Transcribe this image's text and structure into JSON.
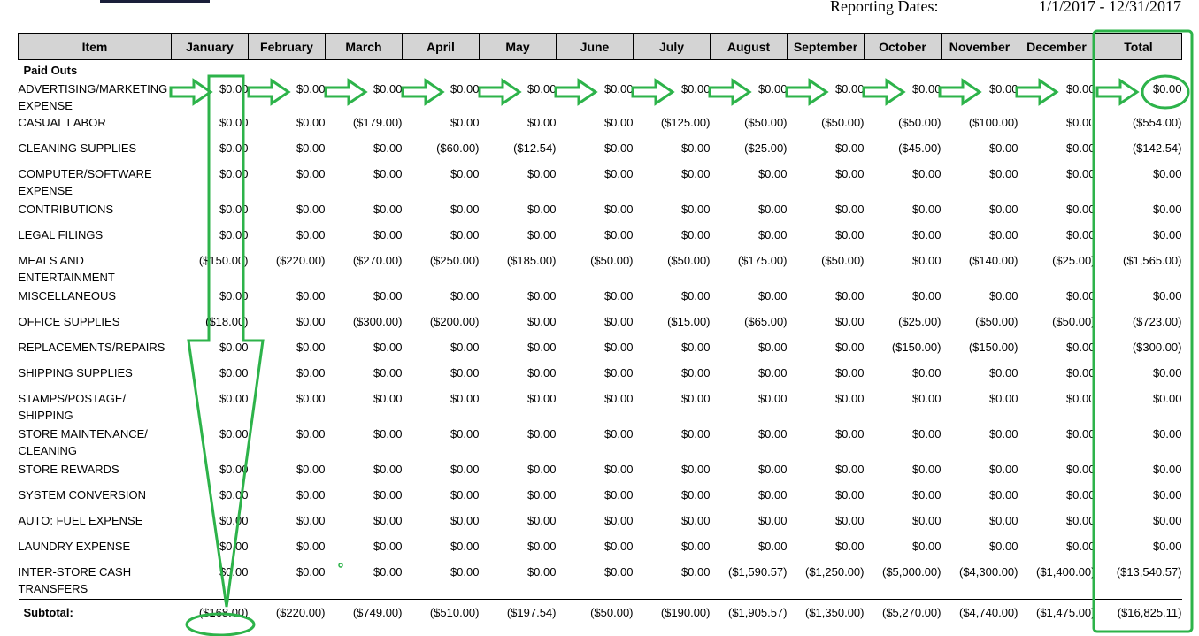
{
  "reporting": {
    "label": "Reporting Dates:",
    "range": "1/1/2017 - 12/31/2017"
  },
  "table": {
    "headers": [
      "Item",
      "January",
      "February",
      "March",
      "April",
      "May",
      "June",
      "July",
      "August",
      "September",
      "October",
      "November",
      "December",
      "Total"
    ],
    "section": "Paid Outs",
    "rows": [
      {
        "item": "ADVERTISING/MARKETING EXPENSE",
        "values": [
          "$0.00",
          "$0.00",
          "$0.00",
          "$0.00",
          "$0.00",
          "$0.00",
          "$0.00",
          "$0.00",
          "$0.00",
          "$0.00",
          "$0.00",
          "$0.00",
          "$0.00"
        ]
      },
      {
        "item": "CASUAL LABOR",
        "values": [
          "$0.00",
          "$0.00",
          "($179.00)",
          "$0.00",
          "$0.00",
          "$0.00",
          "($125.00)",
          "($50.00)",
          "($50.00)",
          "($50.00)",
          "($100.00)",
          "$0.00",
          "($554.00)"
        ]
      },
      {
        "item": "CLEANING SUPPLIES",
        "values": [
          "$0.00",
          "$0.00",
          "$0.00",
          "($60.00)",
          "($12.54)",
          "$0.00",
          "$0.00",
          "($25.00)",
          "$0.00",
          "($45.00)",
          "$0.00",
          "$0.00",
          "($142.54)"
        ]
      },
      {
        "item": "COMPUTER/SOFTWARE EXPENSE",
        "values": [
          "$0.00",
          "$0.00",
          "$0.00",
          "$0.00",
          "$0.00",
          "$0.00",
          "$0.00",
          "$0.00",
          "$0.00",
          "$0.00",
          "$0.00",
          "$0.00",
          "$0.00"
        ]
      },
      {
        "item": "CONTRIBUTIONS",
        "values": [
          "$0.00",
          "$0.00",
          "$0.00",
          "$0.00",
          "$0.00",
          "$0.00",
          "$0.00",
          "$0.00",
          "$0.00",
          "$0.00",
          "$0.00",
          "$0.00",
          "$0.00"
        ]
      },
      {
        "item": "LEGAL FILINGS",
        "values": [
          "$0.00",
          "$0.00",
          "$0.00",
          "$0.00",
          "$0.00",
          "$0.00",
          "$0.00",
          "$0.00",
          "$0.00",
          "$0.00",
          "$0.00",
          "$0.00",
          "$0.00"
        ]
      },
      {
        "item": "MEALS AND ENTERTAINMENT",
        "values": [
          "($150.00)",
          "($220.00)",
          "($270.00)",
          "($250.00)",
          "($185.00)",
          "($50.00)",
          "($50.00)",
          "($175.00)",
          "($50.00)",
          "$0.00",
          "($140.00)",
          "($25.00)",
          "($1,565.00)"
        ]
      },
      {
        "item": "MISCELLANEOUS",
        "values": [
          "$0.00",
          "$0.00",
          "$0.00",
          "$0.00",
          "$0.00",
          "$0.00",
          "$0.00",
          "$0.00",
          "$0.00",
          "$0.00",
          "$0.00",
          "$0.00",
          "$0.00"
        ]
      },
      {
        "item": "OFFICE SUPPLIES",
        "values": [
          "($18.00)",
          "$0.00",
          "($300.00)",
          "($200.00)",
          "$0.00",
          "$0.00",
          "($15.00)",
          "($65.00)",
          "$0.00",
          "($25.00)",
          "($50.00)",
          "($50.00)",
          "($723.00)"
        ]
      },
      {
        "item": "REPLACEMENTS/REPAIRS",
        "values": [
          "$0.00",
          "$0.00",
          "$0.00",
          "$0.00",
          "$0.00",
          "$0.00",
          "$0.00",
          "$0.00",
          "$0.00",
          "($150.00)",
          "($150.00)",
          "$0.00",
          "($300.00)"
        ]
      },
      {
        "item": "SHIPPING SUPPLIES",
        "values": [
          "$0.00",
          "$0.00",
          "$0.00",
          "$0.00",
          "$0.00",
          "$0.00",
          "$0.00",
          "$0.00",
          "$0.00",
          "$0.00",
          "$0.00",
          "$0.00",
          "$0.00"
        ]
      },
      {
        "item": "STAMPS/POSTAGE/ SHIPPING",
        "values": [
          "$0.00",
          "$0.00",
          "$0.00",
          "$0.00",
          "$0.00",
          "$0.00",
          "$0.00",
          "$0.00",
          "$0.00",
          "$0.00",
          "$0.00",
          "$0.00",
          "$0.00"
        ]
      },
      {
        "item": "STORE MAINTENANCE/ CLEANING",
        "values": [
          "$0.00",
          "$0.00",
          "$0.00",
          "$0.00",
          "$0.00",
          "$0.00",
          "$0.00",
          "$0.00",
          "$0.00",
          "$0.00",
          "$0.00",
          "$0.00",
          "$0.00"
        ]
      },
      {
        "item": "STORE REWARDS",
        "values": [
          "$0.00",
          "$0.00",
          "$0.00",
          "$0.00",
          "$0.00",
          "$0.00",
          "$0.00",
          "$0.00",
          "$0.00",
          "$0.00",
          "$0.00",
          "$0.00",
          "$0.00"
        ]
      },
      {
        "item": "SYSTEM CONVERSION",
        "values": [
          "$0.00",
          "$0.00",
          "$0.00",
          "$0.00",
          "$0.00",
          "$0.00",
          "$0.00",
          "$0.00",
          "$0.00",
          "$0.00",
          "$0.00",
          "$0.00",
          "$0.00"
        ]
      },
      {
        "item": "AUTO: FUEL EXPENSE",
        "values": [
          "$0.00",
          "$0.00",
          "$0.00",
          "$0.00",
          "$0.00",
          "$0.00",
          "$0.00",
          "$0.00",
          "$0.00",
          "$0.00",
          "$0.00",
          "$0.00",
          "$0.00"
        ]
      },
      {
        "item": "LAUNDRY EXPENSE",
        "values": [
          "$0.00",
          "$0.00",
          "$0.00",
          "$0.00",
          "$0.00",
          "$0.00",
          "$0.00",
          "$0.00",
          "$0.00",
          "$0.00",
          "$0.00",
          "$0.00",
          "$0.00"
        ]
      },
      {
        "item": "INTER-STORE CASH TRANSFERS",
        "values": [
          "$0.00",
          "$0.00",
          "$0.00",
          "$0.00",
          "$0.00",
          "$0.00",
          "$0.00",
          "($1,590.57)",
          "($1,250.00)",
          "($5,000.00)",
          "($4,300.00)",
          "($1,400.00)",
          "($13,540.57)"
        ]
      }
    ],
    "subtotal": {
      "label": "Subtotal:",
      "values": [
        "($168.00)",
        "($220.00)",
        "($749.00)",
        "($510.00)",
        "($197.54)",
        "($50.00)",
        "($190.00)",
        "($1,905.57)",
        "($1,350.00)",
        "($5,270.00)",
        "($4,740.00)",
        "($1,475.00)",
        "($16,825.11)"
      ]
    }
  },
  "annotation_color": "#2db34a"
}
